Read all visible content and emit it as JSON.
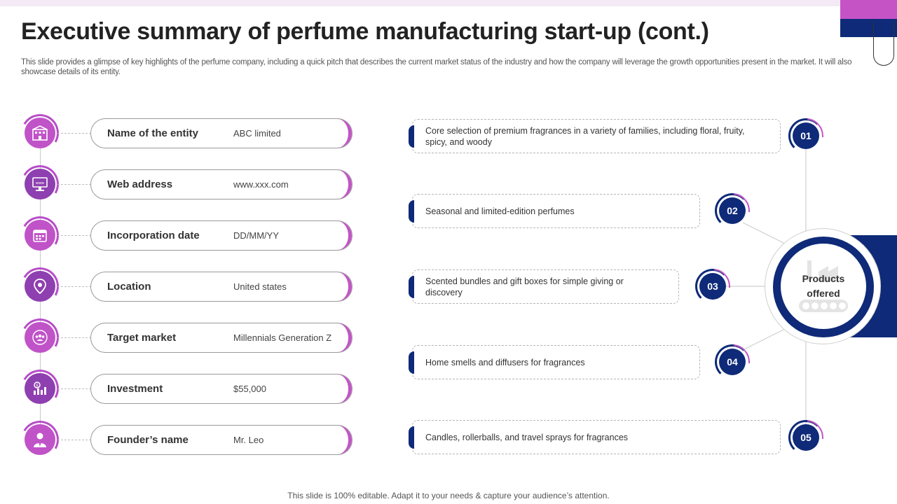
{
  "slide": {
    "title": "Executive summary of perfume manufacturing start-up (cont.)",
    "subtitle": "This slide provides a glimpse of key highlights of the perfume company, including a quick pitch that describes the current market status of the industry and how the company will leverage the growth opportunities present in the market. It will also showcase details of its entity.",
    "footer": "This slide is 100% editable. Adapt it to your needs & capture your audience’s attention."
  },
  "colors": {
    "navy": "#0e2a78",
    "pink": "#c255c6",
    "purple": "#8e3fb0"
  },
  "entity_details": [
    {
      "label": "Name of the entity",
      "value": "ABC limited",
      "icon": "building-icon"
    },
    {
      "label": "Web address",
      "value": "www.xxx.com",
      "icon": "monitor-icon"
    },
    {
      "label": "Incorporation date",
      "value": "DD/MM/YY",
      "icon": "calendar-icon"
    },
    {
      "label": "Location",
      "value": "United states",
      "icon": "location-pin-icon"
    },
    {
      "label": "Target market",
      "value": "Millennials Generation Z",
      "icon": "target-audience-icon"
    },
    {
      "label": "Investment",
      "value": "$55,000",
      "icon": "investment-icon"
    },
    {
      "label": "Founder’s name",
      "value": "Mr. Leo",
      "icon": "founder-icon"
    }
  ],
  "products": {
    "hub_label": "Products offered",
    "hub_icon": "factory-conveyor-icon",
    "items": [
      {
        "number": "01",
        "text": "Core selection of premium fragrances in a variety of families, including floral, fruity, spicy, and woody"
      },
      {
        "number": "02",
        "text": "Seasonal and limited-edition perfumes"
      },
      {
        "number": "03",
        "text": "Scented bundles and gift boxes for simple giving or discovery"
      },
      {
        "number": "04",
        "text": "Home smells and diffusers for fragrances"
      },
      {
        "number": "05",
        "text": "Candles, rollerballs, and travel sprays for fragrances"
      }
    ]
  }
}
